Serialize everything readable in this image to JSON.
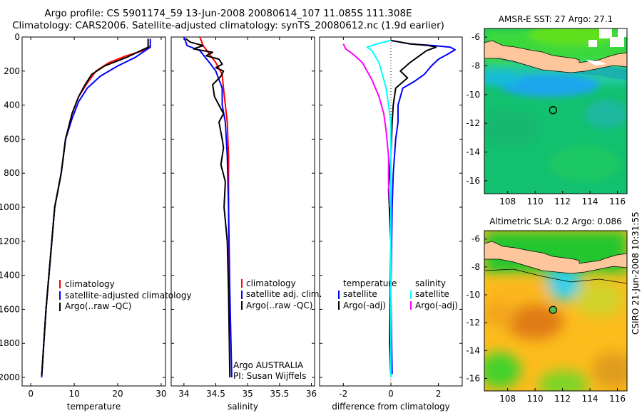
{
  "page": {
    "title_line1": "Argo profile: CS 5901174_59 13-Jun-2008 20080614_107 11.085S 111.308E",
    "title_line2": "Climatology: CARS2006. Satellite-adjusted climatology: synTS_20080612.nc (1.9d earlier)",
    "side_label": "CSIRO 21-Jun-2008 10:31:55"
  },
  "colors": {
    "climatology": "#ff0000",
    "satellite": "#0000ff",
    "argo": "#000000",
    "argo_sal_diff": "#ff00ff",
    "sal_satellite": "#00ffff"
  },
  "chart_data": [
    {
      "type": "line",
      "xlabel": "temperature",
      "xlim": [
        -2,
        31
      ],
      "ylim": [
        2050,
        0
      ],
      "xticks": [
        0,
        10,
        20,
        30
      ],
      "yticks": [
        0,
        200,
        400,
        600,
        800,
        1000,
        1200,
        1400,
        1600,
        1800,
        2000
      ],
      "legend": [
        "climatology",
        "satellite-adjusted climatology",
        "Argo(..raw -QC)"
      ],
      "series": [
        {
          "name": "climatology",
          "color": "#ff0000",
          "points": [
            [
              27.5,
              50
            ],
            [
              26.5,
              75
            ],
            [
              22,
              110
            ],
            [
              18,
              150
            ],
            [
              15,
              200
            ],
            [
              13,
              270
            ],
            [
              11,
              350
            ],
            [
              9.5,
              450
            ],
            [
              8,
              600
            ],
            [
              7,
              800
            ],
            [
              5.5,
              1000
            ],
            [
              4.5,
              1300
            ],
            [
              3.5,
              1600
            ],
            [
              2.5,
              2000
            ]
          ]
        },
        {
          "name": "satellite-adjusted climatology",
          "color": "#0000ff",
          "points": [
            [
              27.5,
              10
            ],
            [
              27.5,
              60
            ],
            [
              24,
              120
            ],
            [
              20,
              170
            ],
            [
              16,
              230
            ],
            [
              13,
              300
            ],
            [
              11,
              380
            ],
            [
              9.5,
              480
            ],
            [
              8,
              600
            ],
            [
              7,
              800
            ],
            [
              5.5,
              1000
            ],
            [
              4.5,
              1300
            ],
            [
              3.5,
              1600
            ],
            [
              2.5,
              2000
            ]
          ]
        },
        {
          "name": "Argo(..raw -QC)",
          "color": "#000000",
          "points": [
            [
              27,
              10
            ],
            [
              27,
              60
            ],
            [
              22,
              120
            ],
            [
              17,
              170
            ],
            [
              14,
              220
            ],
            [
              12.5,
              280
            ],
            [
              11,
              350
            ],
            [
              9.5,
              450
            ],
            [
              8,
              600
            ],
            [
              7,
              800
            ],
            [
              5.5,
              1000
            ],
            [
              4.5,
              1300
            ],
            [
              3.5,
              1600
            ],
            [
              2.5,
              1990
            ]
          ]
        }
      ]
    },
    {
      "type": "line",
      "xlabel": "salinity",
      "xlim": [
        33.8,
        36.05
      ],
      "ylim": [
        2050,
        0
      ],
      "xticks": [
        34,
        34.5,
        35,
        35.5,
        36
      ],
      "yticks": [
        0,
        200,
        400,
        600,
        800,
        1000,
        1200,
        1400,
        1600,
        1800,
        2000
      ],
      "legend": [
        "climatology",
        "satellite adj. clim.",
        "Argo(..raw -QC)"
      ],
      "annotation": [
        "Argo AUSTRALIA",
        "PI: Susan Wijffels"
      ],
      "series": [
        {
          "name": "climatology",
          "color": "#ff0000",
          "points": [
            [
              34.25,
              0
            ],
            [
              34.3,
              50
            ],
            [
              34.4,
              100
            ],
            [
              34.5,
              150
            ],
            [
              34.6,
              220
            ],
            [
              34.62,
              300
            ],
            [
              34.65,
              400
            ],
            [
              34.68,
              500
            ],
            [
              34.7,
              700
            ],
            [
              34.7,
              1000
            ],
            [
              34.71,
              1500
            ],
            [
              34.73,
              1750
            ]
          ]
        },
        {
          "name": "satellite adj. clim.",
          "color": "#0000ff",
          "points": [
            [
              34.0,
              0
            ],
            [
              34.05,
              50
            ],
            [
              34.25,
              80
            ],
            [
              34.4,
              150
            ],
            [
              34.5,
              200
            ],
            [
              34.55,
              250
            ],
            [
              34.6,
              300
            ],
            [
              34.6,
              400
            ],
            [
              34.65,
              500
            ],
            [
              34.68,
              700
            ],
            [
              34.7,
              1000
            ],
            [
              34.72,
              1500
            ],
            [
              34.75,
              2000
            ]
          ]
        },
        {
          "name": "Argo(..raw -QC)",
          "color": "#000000",
          "points": [
            [
              34.03,
              10
            ],
            [
              34.1,
              30
            ],
            [
              34.3,
              50
            ],
            [
              34.15,
              70
            ],
            [
              34.45,
              90
            ],
            [
              34.35,
              110
            ],
            [
              34.55,
              130
            ],
            [
              34.6,
              160
            ],
            [
              34.5,
              180
            ],
            [
              34.62,
              200
            ],
            [
              34.58,
              230
            ],
            [
              34.45,
              280
            ],
            [
              34.48,
              350
            ],
            [
              34.55,
              400
            ],
            [
              34.62,
              450
            ],
            [
              34.55,
              500
            ],
            [
              34.6,
              600
            ],
            [
              34.62,
              650
            ],
            [
              34.58,
              750
            ],
            [
              34.65,
              850
            ],
            [
              34.63,
              1000
            ],
            [
              34.68,
              1200
            ],
            [
              34.7,
              1500
            ],
            [
              34.72,
              2000
            ]
          ]
        }
      ]
    },
    {
      "type": "line",
      "xlabel": "difference from climatology",
      "xlim": [
        -3,
        3
      ],
      "ylim": [
        2050,
        0
      ],
      "xticks": [
        -2,
        0,
        2
      ],
      "yticks": [
        0,
        200,
        400,
        600,
        800,
        1000,
        1200,
        1400,
        1600,
        1800,
        2000
      ],
      "legend_left": [
        "temperature",
        "satellite",
        "Argo(-adj)"
      ],
      "legend_right": [
        "salinity",
        "satellite",
        "Argo(-adj)"
      ],
      "series": [
        {
          "name": "satellite",
          "color": "#0000ff",
          "points": [
            [
              0,
              20
            ],
            [
              0.8,
              40
            ],
            [
              1.8,
              50
            ],
            [
              2.5,
              60
            ],
            [
              2.7,
              75
            ],
            [
              2.4,
              100
            ],
            [
              2,
              130
            ],
            [
              1.7,
              170
            ],
            [
              1.4,
              220
            ],
            [
              1.0,
              260
            ],
            [
              0.5,
              300
            ],
            [
              0.3,
              400
            ],
            [
              0.3,
              500
            ],
            [
              0.2,
              600
            ],
            [
              0.1,
              800
            ],
            [
              0.05,
              1000
            ],
            [
              0,
              1500
            ],
            [
              0.05,
              1980
            ]
          ]
        },
        {
          "name": "Argo(-adj)",
          "color": "#000000",
          "points": [
            [
              0,
              20
            ],
            [
              0.8,
              40
            ],
            [
              1.6,
              50
            ],
            [
              1.9,
              60
            ],
            [
              1.5,
              80
            ],
            [
              1.2,
              110
            ],
            [
              0.8,
              150
            ],
            [
              0.4,
              200
            ],
            [
              0.7,
              240
            ],
            [
              0.2,
              300
            ],
            [
              0.1,
              400
            ],
            [
              0.05,
              500
            ],
            [
              0,
              700
            ],
            [
              -0.1,
              900
            ],
            [
              0,
              1200
            ],
            [
              -0.05,
              1800
            ],
            [
              0,
              2000
            ]
          ]
        },
        {
          "name": "satellite (salinity)",
          "color": "#00ffff",
          "points": [
            [
              0,
              20
            ],
            [
              -0.6,
              40
            ],
            [
              -1.0,
              60
            ],
            [
              -0.8,
              80
            ],
            [
              -0.5,
              150
            ],
            [
              -0.2,
              300
            ],
            [
              0,
              500
            ],
            [
              0,
              1000
            ],
            [
              0,
              2000
            ]
          ]
        },
        {
          "name": "Argo(-adj) (salinity)",
          "color": "#ff00ff",
          "points": [
            [
              -2,
              40
            ],
            [
              -1.9,
              70
            ],
            [
              -1.6,
              100
            ],
            [
              -1.2,
              150
            ],
            [
              -0.8,
              250
            ],
            [
              -0.5,
              350
            ],
            [
              -0.3,
              450
            ],
            [
              -0.2,
              550
            ],
            [
              -0.1,
              700
            ],
            [
              -0.1,
              850
            ],
            [
              -0.05,
              1000
            ]
          ]
        }
      ]
    },
    {
      "type": "heatmap",
      "title": "AMSR-E SST: 27 Argo: 27.1",
      "xlim": [
        106.3,
        116.7
      ],
      "ylim": [
        -16.9,
        -5.4
      ],
      "xticks": [
        108,
        110,
        112,
        114,
        116
      ],
      "yticks": [
        -6,
        -8,
        -10,
        -12,
        -14,
        -16
      ],
      "marker": {
        "lon": 111.308,
        "lat": -11.085
      }
    },
    {
      "type": "heatmap",
      "title": "Altimetric SLA: 0.2 Argo: 0.086",
      "xlim": [
        106.3,
        116.7
      ],
      "ylim": [
        -16.9,
        -5.4
      ],
      "xticks": [
        108,
        110,
        112,
        114,
        116
      ],
      "yticks": [
        -6,
        -8,
        -10,
        -12,
        -14,
        -16
      ],
      "marker": {
        "lon": 111.308,
        "lat": -11.085
      }
    }
  ]
}
